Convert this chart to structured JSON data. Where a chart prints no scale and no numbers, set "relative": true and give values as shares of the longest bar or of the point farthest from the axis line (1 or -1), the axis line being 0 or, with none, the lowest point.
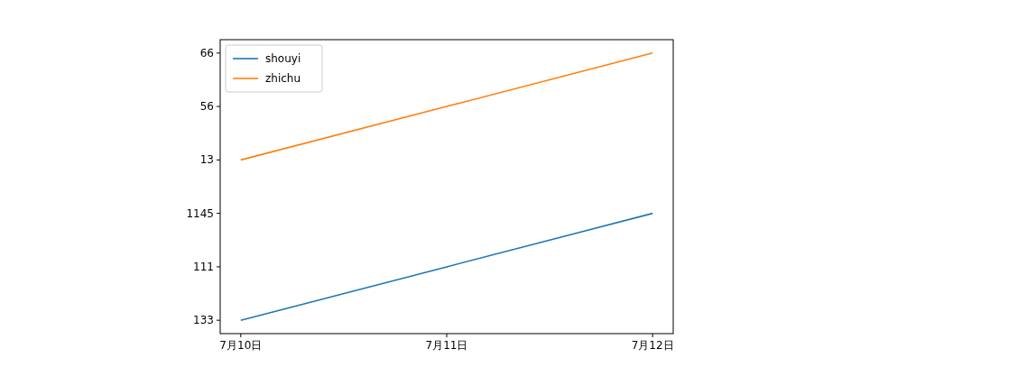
{
  "chart_data": {
    "type": "line",
    "categories": [
      "7月10日",
      "7月11日",
      "7月12日"
    ],
    "relative": true,
    "series": [
      {
        "name": "shouyi",
        "color": "#1f77b4",
        "values": [
          0,
          0.2,
          0.4
        ]
      },
      {
        "name": "zhichu",
        "color": "#ff7f0e",
        "values": [
          0.6,
          0.8,
          1
        ]
      }
    ],
    "annotations": [
      "133",
      "111",
      "1145",
      "13",
      "56",
      "66"
    ],
    "legend": "top left",
    "line_style": "solid"
  }
}
